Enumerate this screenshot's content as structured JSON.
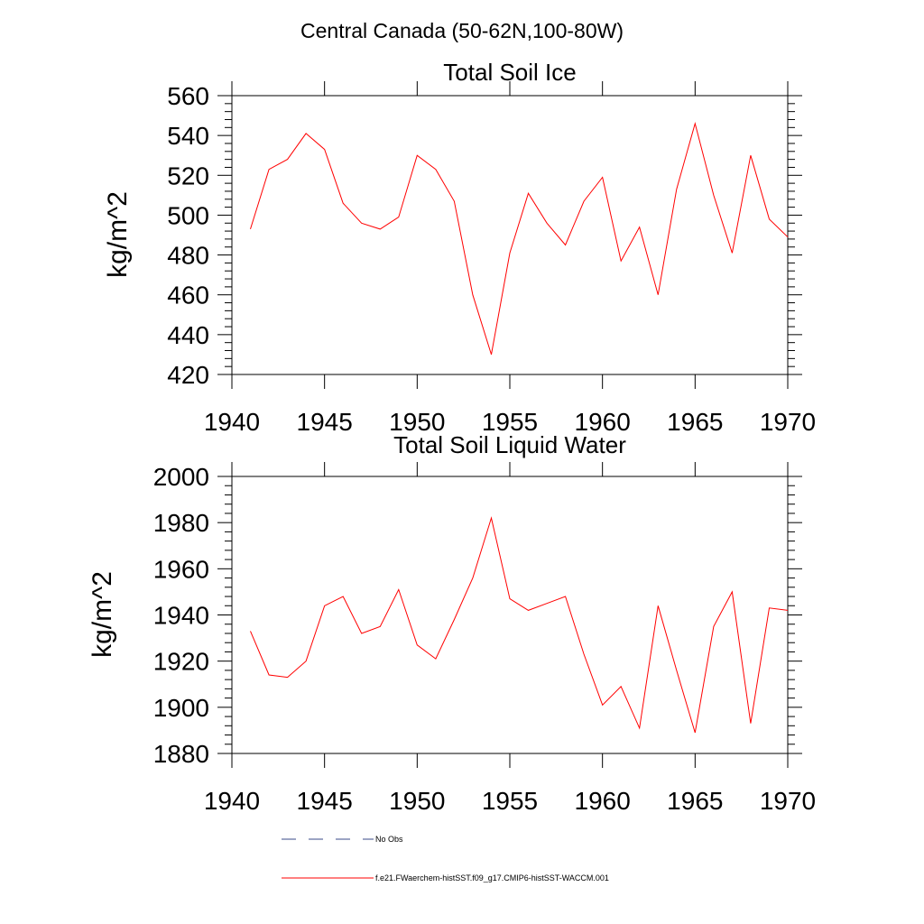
{
  "figure": {
    "suptitle": "Central Canada (50-62N,100-80W)"
  },
  "chart_data": [
    {
      "type": "line",
      "title": "Total Soil Ice",
      "xlabel": "",
      "ylabel": "kg/m^2",
      "xlim": [
        1940,
        1970
      ],
      "ylim": [
        420,
        560
      ],
      "xticks": [
        1940,
        1945,
        1950,
        1955,
        1960,
        1965,
        1970
      ],
      "yticks": [
        420,
        440,
        460,
        480,
        500,
        520,
        540,
        560
      ],
      "grid": false,
      "series": [
        {
          "name": "f.e21.FWaerchem-histSST.f09_g17.CMIP6-histSST-WACCM.001",
          "color": "#ff0000",
          "x": [
            1941,
            1942,
            1943,
            1944,
            1945,
            1946,
            1947,
            1948,
            1949,
            1950,
            1951,
            1952,
            1953,
            1954,
            1955,
            1956,
            1957,
            1958,
            1959,
            1960,
            1961,
            1962,
            1963,
            1964,
            1965,
            1966,
            1967,
            1968,
            1969,
            1970
          ],
          "y": [
            493,
            523,
            528,
            541,
            533,
            506,
            496,
            493,
            499,
            530,
            523,
            507,
            460,
            430,
            481,
            511,
            496,
            485,
            507,
            519,
            477,
            494,
            460,
            513,
            546,
            510,
            481,
            530,
            498,
            489
          ]
        }
      ]
    },
    {
      "type": "line",
      "title": "Total Soil Liquid Water",
      "xlabel": "",
      "ylabel": "kg/m^2",
      "xlim": [
        1940,
        1970
      ],
      "ylim": [
        1880,
        2000
      ],
      "xticks": [
        1940,
        1945,
        1950,
        1955,
        1960,
        1965,
        1970
      ],
      "yticks": [
        1880,
        1900,
        1920,
        1940,
        1960,
        1980,
        2000
      ],
      "grid": false,
      "series": [
        {
          "name": "f.e21.FWaerchem-histSST.f09_g17.CMIP6-histSST-WACCM.001",
          "color": "#ff0000",
          "x": [
            1941,
            1942,
            1943,
            1944,
            1945,
            1946,
            1947,
            1948,
            1949,
            1950,
            1951,
            1952,
            1953,
            1954,
            1955,
            1956,
            1957,
            1958,
            1959,
            1960,
            1961,
            1962,
            1963,
            1964,
            1965,
            1966,
            1967,
            1968,
            1969,
            1970
          ],
          "y": [
            1933,
            1914,
            1913,
            1920,
            1944,
            1948,
            1932,
            1935,
            1951,
            1927,
            1921,
            1938,
            1956,
            1982,
            1947,
            1942,
            1945,
            1948,
            1923,
            1901,
            1909,
            1891,
            1944,
            1916,
            1889,
            1935,
            1950,
            1893,
            1943,
            1942
          ]
        }
      ]
    }
  ],
  "legend": {
    "placement": "bottom",
    "entries": [
      {
        "label": "No Obs",
        "color": "#3a4a8a",
        "style": "dashed"
      },
      {
        "label": "f.e21.FWaerchem-histSST.f09_g17.CMIP6-histSST-WACCM.001",
        "color": "#ff0000",
        "style": "solid"
      }
    ]
  }
}
